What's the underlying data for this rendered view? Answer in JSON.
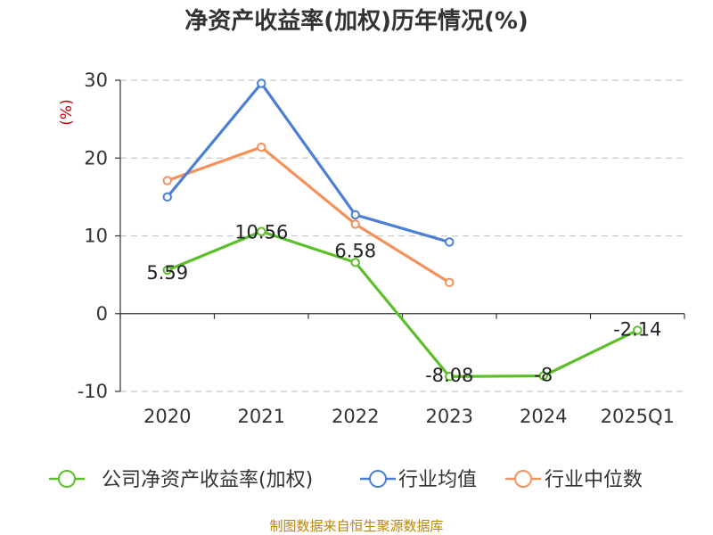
{
  "chart_data": {
    "type": "line",
    "title": "净资产收益率(加权)历年情况(%)",
    "ylabel": "(%)",
    "categories": [
      "2020",
      "2021",
      "2022",
      "2023",
      "2024",
      "2025Q1"
    ],
    "ylim": [
      -10,
      30
    ],
    "yticks": [
      30,
      20,
      10,
      0,
      -10
    ],
    "grid": true,
    "legend_position": "bottom",
    "series": [
      {
        "name": "公司净资产收益率(加权)",
        "color": "#5cbf2a",
        "values": [
          5.59,
          10.56,
          6.58,
          -8.08,
          -8,
          -2.14
        ],
        "labels": [
          "5.59",
          "10.56",
          "6.58",
          "-8.08",
          "-8",
          "-2.14"
        ]
      },
      {
        "name": "行业均值",
        "color": "#4a7fd4",
        "values": [
          15,
          29.6,
          12.7,
          9.2,
          null,
          null
        ]
      },
      {
        "name": "行业中位数",
        "color": "#f5915a",
        "values": [
          17.1,
          21.4,
          11.5,
          4,
          null,
          null
        ]
      }
    ]
  },
  "source": "制图数据来自恒生聚源数据库"
}
